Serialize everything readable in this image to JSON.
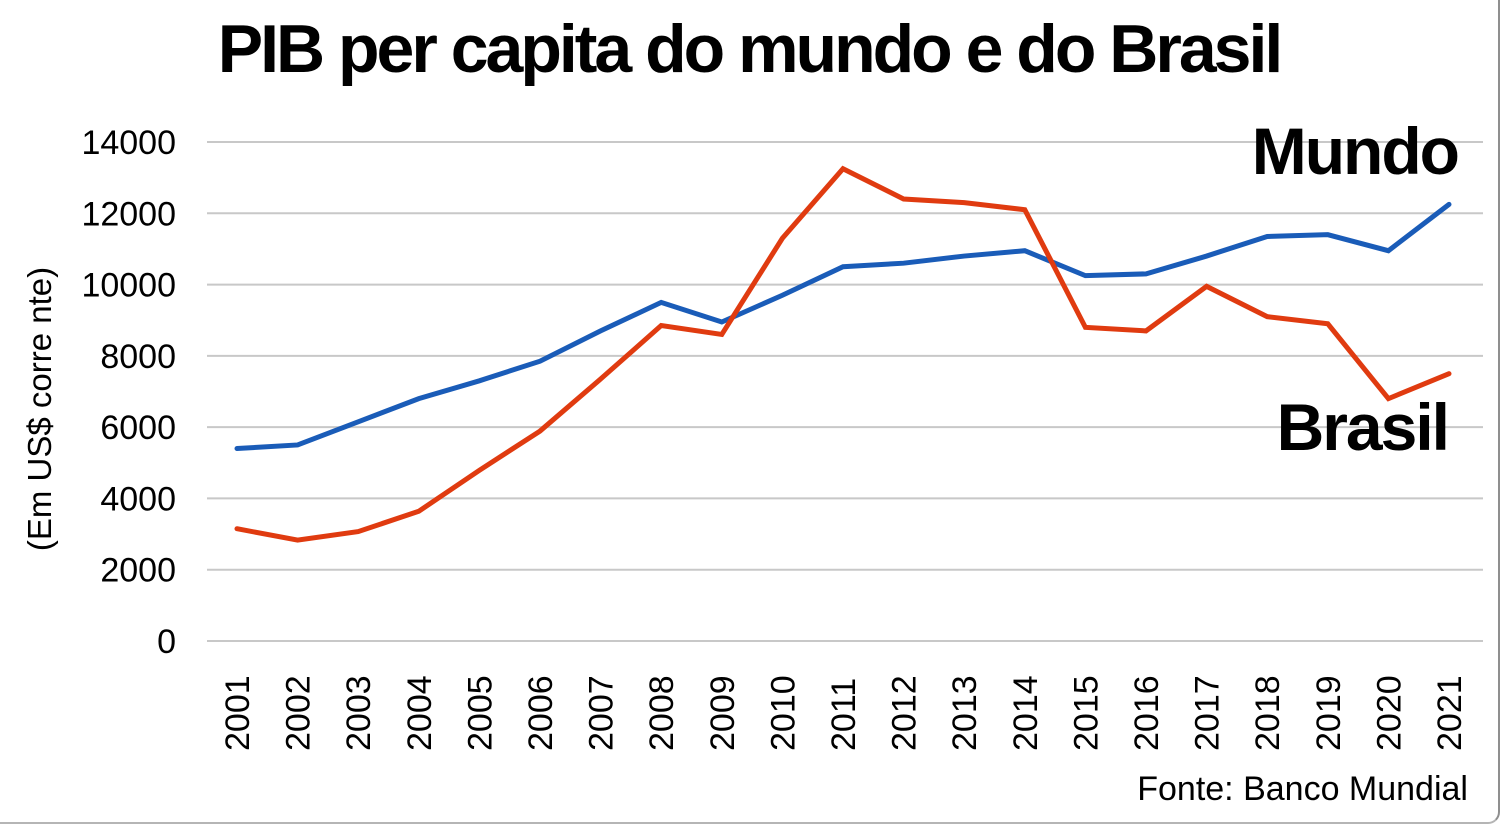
{
  "chart_data": {
    "type": "line",
    "title": "PIB per capita do mundo e do Brasil",
    "ylabel": "(Em US$ corre nte)",
    "xlabel": "",
    "source": "Fonte: Banco Mundial",
    "categories": [
      "2001",
      "2002",
      "2003",
      "2004",
      "2005",
      "2006",
      "2007",
      "2008",
      "2009",
      "2010",
      "2011",
      "2012",
      "2013",
      "2014",
      "2015",
      "2016",
      "2017",
      "2018",
      "2019",
      "2020",
      "2021"
    ],
    "series": [
      {
        "name": "Mundo",
        "color": "#1A5CB8",
        "values": [
          5400,
          5500,
          6150,
          6800,
          7300,
          7850,
          8700,
          9500,
          8950,
          9700,
          10500,
          10600,
          10800,
          10950,
          10250,
          10300,
          10800,
          11350,
          11400,
          10950,
          12250
        ]
      },
      {
        "name": "Brasil",
        "color": "#E03B10",
        "values": [
          3150,
          2830,
          3070,
          3640,
          4790,
          5890,
          7350,
          8850,
          8600,
          11300,
          13250,
          12400,
          12300,
          12100,
          8800,
          8700,
          9950,
          9100,
          8900,
          6800,
          7500
        ]
      }
    ],
    "ylim": [
      0,
      14000
    ],
    "yticks": [
      0,
      2000,
      4000,
      6000,
      8000,
      10000,
      12000,
      14000
    ],
    "grid": "horizontal-only",
    "gridline_color": "#C8C8C8",
    "legend": "direct-labels-on-chart"
  }
}
